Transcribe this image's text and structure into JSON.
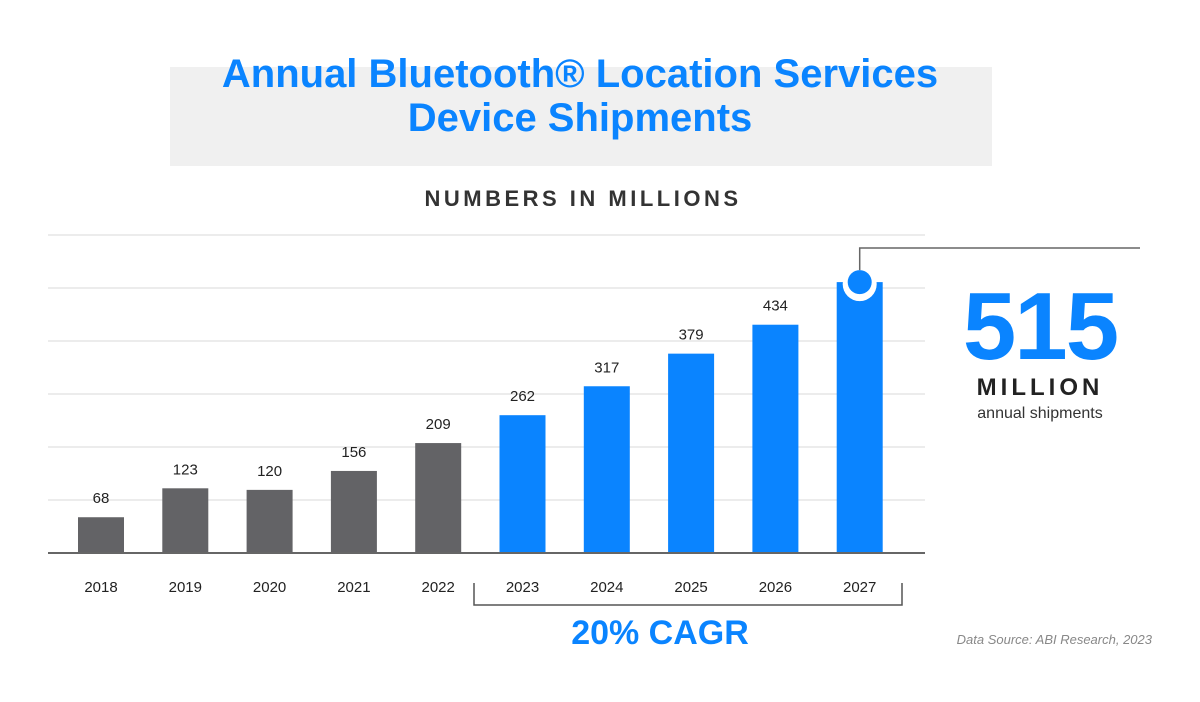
{
  "chart_data": {
    "type": "bar",
    "title": "Annual Bluetooth® Location Services Device Shipments",
    "title_lines": [
      "Annual Bluetooth® Location Services",
      "Device Shipments"
    ],
    "subtitle": "NUMBERS IN MILLIONS",
    "categories": [
      "2018",
      "2019",
      "2020",
      "2021",
      "2022",
      "2023",
      "2024",
      "2025",
      "2026",
      "2027"
    ],
    "values": [
      68,
      123,
      120,
      156,
      209,
      262,
      317,
      379,
      434,
      515
    ],
    "data_labels": [
      "68",
      "123",
      "120",
      "156",
      "209",
      "262",
      "317",
      "379",
      "434",
      ""
    ],
    "colors": {
      "2018-2022": "#636366",
      "2023-2027": "#0a84ff"
    },
    "grid": true,
    "ylim": [
      0,
      600
    ],
    "annotations": {
      "callout_value": "515",
      "callout_unit": "MILLION",
      "callout_text": "annual shipments",
      "bracket_label": "20% CAGR",
      "bracket_range": [
        "2023",
        "2027"
      ]
    },
    "source": "Data Source: ABI Research, 2023"
  }
}
